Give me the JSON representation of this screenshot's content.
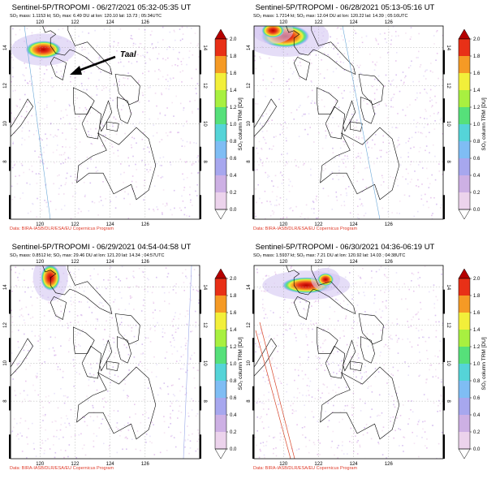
{
  "panels": [
    {
      "title": "Sentinel-5P/TROPOMI - 06/27/2021 05:32-05:35 UT",
      "stats": "SO₂ mass: 1.1153 kt; SO₂ max: 6.49 DU at lon: 120.10 lat: 13.73 ; 05:34UTC",
      "credit": "Data: BIRA-IASB/DLR/ESA/EU Copernicus Program",
      "annotation": "Taal"
    },
    {
      "title": "Sentinel-5P/TROPOMI - 06/28/2021 05:13-05:16 UT",
      "stats": "SO₂ mass: 1.7214 kt; SO₂ max: 12.04 DU at lon: 120.22 lat: 14.39 ; 05:16UTC",
      "credit": "Data: BIRA-IASB/DLR/ESA/EU Copernicus Program",
      "annotation": ""
    },
    {
      "title": "Sentinel-5P/TROPOMI - 06/29/2021 04:54-04:58 UT",
      "stats": "SO₂ mass: 0.8512 kt; SO₂ max: 29.46 DU at lon: 121.20 lat: 14.34 ; 04:57UTC",
      "credit": "Data: BIRA-IASB/DLR/ESA/EU Copernicus Program",
      "annotation": ""
    },
    {
      "title": "Sentinel-5P/TROPOMI - 06/30/2021 04:36-06:19 UT",
      "stats": "SO₂ mass: 1.5937 kt; SO₂ max: 7.21 DU at lon: 120.92 lat: 14.03 ; 04:38UTC",
      "credit": "Data: BIRA-IASB/DLR/ESA/EU Copernicus Program",
      "annotation": ""
    }
  ],
  "axes": {
    "lon_ticks": [
      "120",
      "122",
      "124",
      "126"
    ],
    "lat_ticks": [
      "8",
      "10",
      "12",
      "14"
    ]
  },
  "colorbar": {
    "label": "SO₂ column TRM [DU]",
    "ticks": [
      "0.0",
      "0.2",
      "0.4",
      "0.6",
      "0.8",
      "1.0",
      "1.2",
      "1.4",
      "1.6",
      "1.8",
      "2.0"
    ],
    "colors": [
      "#ffffff",
      "#ecd3ec",
      "#cdb0e4",
      "#a7a7ee",
      "#7fbdf4",
      "#55d4d8",
      "#56e07a",
      "#a8f040",
      "#f2ef3a",
      "#f59a25",
      "#e83017",
      "#b50000"
    ]
  }
}
